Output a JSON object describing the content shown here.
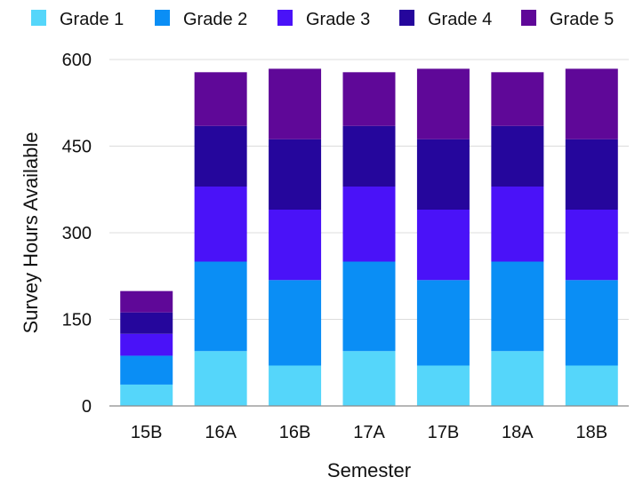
{
  "chart_data": {
    "type": "bar",
    "stacked": true,
    "title": "",
    "xlabel": "Semester",
    "ylabel": "Survey Hours Available",
    "categories": [
      "15B",
      "16A",
      "16B",
      "17A",
      "17B",
      "18A",
      "18B"
    ],
    "ylim": [
      0,
      600
    ],
    "yticks": [
      "0",
      "150",
      "300",
      "450",
      "600"
    ],
    "grid": true,
    "legend_position": "top",
    "series": [
      {
        "name": "Grade 1",
        "color": "#55d6fa",
        "values": [
          37,
          95,
          70,
          95,
          70,
          95,
          70
        ]
      },
      {
        "name": "Grade 2",
        "color": "#0a8ef5",
        "values": [
          50,
          155,
          148,
          155,
          148,
          155,
          148
        ]
      },
      {
        "name": "Grade 3",
        "color": "#4a12f8",
        "values": [
          38,
          130,
          122,
          130,
          122,
          130,
          122
        ]
      },
      {
        "name": "Grade 4",
        "color": "#25069c",
        "values": [
          37,
          105,
          122,
          105,
          122,
          105,
          122
        ]
      },
      {
        "name": "Grade 5",
        "color": "#5f0898",
        "values": [
          37,
          93,
          122,
          93,
          122,
          93,
          122
        ]
      }
    ]
  }
}
